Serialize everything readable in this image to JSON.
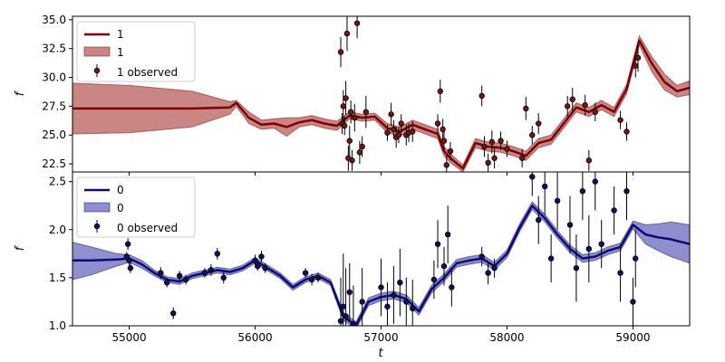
{
  "chart_data": [
    {
      "type": "line",
      "panel": "top",
      "xlabel": "",
      "ylabel": "f",
      "xlim": [
        54550,
        59450
      ],
      "ylim": [
        21.8,
        35.3
      ],
      "yticks": [
        "22.5",
        "25.0",
        "27.5",
        "30.0",
        "32.5",
        "35.0"
      ],
      "yticks_values": [
        22.5,
        25.0,
        27.5,
        30.0,
        32.5,
        35.0
      ],
      "legend_position": "top-left",
      "colors": {
        "line": "#800000",
        "band": "#b85c5c",
        "points": "#7a1414"
      },
      "legend": [
        "1",
        "1",
        "1 observed"
      ],
      "mean": {
        "x": [
          54550,
          55000,
          55500,
          55800,
          55850,
          55950,
          56050,
          56150,
          56250,
          56350,
          56450,
          56550,
          56650,
          56750,
          56850,
          56950,
          57050,
          57150,
          57250,
          57350,
          57450,
          57500,
          57550,
          57650,
          57750,
          57850,
          57950,
          58050,
          58150,
          58250,
          58350,
          58450,
          58550,
          58650,
          58750,
          58850,
          58950,
          59050,
          59150,
          59250,
          59350,
          59450
        ],
        "y": [
          27.3,
          27.3,
          27.3,
          27.4,
          27.8,
          26.5,
          25.9,
          26.0,
          25.7,
          26.1,
          26.3,
          26.0,
          25.8,
          26.7,
          26.5,
          26.6,
          25.6,
          25.3,
          25.9,
          25.5,
          25.1,
          23.6,
          23.0,
          22.1,
          24.3,
          24.0,
          23.9,
          23.6,
          23.2,
          24.3,
          24.6,
          26.0,
          27.4,
          27.0,
          27.6,
          27.0,
          29.0,
          33.2,
          31.2,
          29.6,
          28.8,
          29.1
        ]
      },
      "band": {
        "lower": [
          25.1,
          25.2,
          25.7,
          26.8,
          27.5,
          26.0,
          25.5,
          25.6,
          24.9,
          25.7,
          25.9,
          25.6,
          25.4,
          26.4,
          26.2,
          26.3,
          25.2,
          24.9,
          25.5,
          25.1,
          24.7,
          23.2,
          22.6,
          21.8,
          23.9,
          23.6,
          23.5,
          23.2,
          22.8,
          23.9,
          24.2,
          25.6,
          27.0,
          26.6,
          27.2,
          26.6,
          28.6,
          32.8,
          30.5,
          28.9,
          28.3,
          28.5
        ],
        "upper": [
          29.5,
          29.3,
          28.8,
          27.9,
          28.0,
          27.0,
          26.3,
          26.4,
          26.5,
          26.5,
          26.7,
          26.4,
          26.2,
          27.0,
          26.8,
          26.9,
          26.0,
          25.7,
          26.3,
          25.9,
          25.5,
          24.0,
          23.4,
          22.4,
          24.7,
          24.4,
          24.3,
          24.0,
          23.6,
          24.7,
          25.0,
          26.4,
          27.8,
          27.4,
          28.0,
          27.4,
          29.4,
          33.6,
          31.8,
          30.3,
          29.3,
          29.7
        ]
      },
      "observed": {
        "x": [
          56680,
          56690,
          56700,
          56710,
          56720,
          56730,
          56740,
          56750,
          56760,
          56770,
          56790,
          56810,
          56830,
          56850,
          56880,
          57050,
          57080,
          57100,
          57120,
          57140,
          57160,
          57200,
          57220,
          57250,
          57450,
          57470,
          57490,
          57500,
          57520,
          57550,
          57800,
          57820,
          57850,
          57880,
          57900,
          57950,
          58000,
          58120,
          58150,
          58200,
          58250,
          58480,
          58520,
          58620,
          58650,
          58700,
          58900,
          58950,
          59020,
          59040
        ],
        "y": [
          32.2,
          26.0,
          27.5,
          25.8,
          28.2,
          33.8,
          23.0,
          24.5,
          27.0,
          22.8,
          26.5,
          34.7,
          23.5,
          24.0,
          27.0,
          25.2,
          26.8,
          25.5,
          24.8,
          25.0,
          26.0,
          25.0,
          25.2,
          25.3,
          26.0,
          28.8,
          25.5,
          24.5,
          22.4,
          23.6,
          28.4,
          24.0,
          22.6,
          24.4,
          23.0,
          24.5,
          23.8,
          23.0,
          27.3,
          25.0,
          26.0,
          27.5,
          28.1,
          27.6,
          22.8,
          27.0,
          26.3,
          25.3,
          31.0,
          31.7
        ],
        "yerr": [
          1.3,
          0.9,
          1.4,
          0.8,
          1.5,
          1.5,
          1.1,
          1.3,
          1.0,
          0.9,
          1.2,
          1.3,
          1.0,
          0.9,
          1.4,
          0.7,
          1.0,
          0.8,
          0.9,
          0.7,
          0.8,
          0.9,
          0.8,
          0.9,
          0.8,
          1.0,
          0.9,
          0.9,
          0.9,
          0.8,
          0.9,
          0.9,
          0.8,
          1.0,
          0.9,
          0.8,
          0.7,
          0.8,
          1.0,
          0.8,
          0.9,
          0.9,
          1.0,
          0.9,
          0.9,
          0.8,
          0.8,
          0.8,
          1.0,
          1.2
        ]
      }
    },
    {
      "type": "line",
      "panel": "bottom",
      "xlabel": "t",
      "ylabel": "f",
      "xlim": [
        54550,
        59450
      ],
      "ylim": [
        1.0,
        2.6
      ],
      "xticks": [
        "55000",
        "56000",
        "57000",
        "58000",
        "59000"
      ],
      "xticks_values": [
        55000,
        56000,
        57000,
        58000,
        59000
      ],
      "yticks": [
        "1.0",
        "1.5",
        "2.0",
        "2.5"
      ],
      "yticks_values": [
        1.0,
        1.5,
        2.0,
        2.5
      ],
      "legend_position": "top-left",
      "colors": {
        "line": "#0a0a7a",
        "band": "#6a6abf",
        "points": "#101060"
      },
      "legend": [
        "0",
        "0",
        "0 observed"
      ],
      "mean": {
        "x": [
          54550,
          54700,
          54900,
          55000,
          55100,
          55200,
          55300,
          55400,
          55500,
          55600,
          55700,
          55800,
          55900,
          56000,
          56100,
          56200,
          56300,
          56400,
          56500,
          56600,
          56700,
          56800,
          56900,
          57000,
          57100,
          57200,
          57300,
          57400,
          57500,
          57600,
          57700,
          57800,
          57900,
          58000,
          58100,
          58200,
          58300,
          58400,
          58500,
          58600,
          58700,
          58800,
          58900,
          59000,
          59100,
          59200,
          59300,
          59450
        ],
        "y": [
          1.68,
          1.68,
          1.69,
          1.7,
          1.64,
          1.55,
          1.48,
          1.46,
          1.52,
          1.55,
          1.58,
          1.56,
          1.6,
          1.68,
          1.6,
          1.52,
          1.4,
          1.48,
          1.52,
          1.45,
          1.1,
          1.0,
          1.25,
          1.3,
          1.32,
          1.28,
          1.15,
          1.38,
          1.5,
          1.65,
          1.68,
          1.7,
          1.62,
          1.75,
          2.02,
          2.25,
          2.12,
          1.95,
          1.8,
          1.7,
          1.72,
          1.78,
          1.82,
          2.05,
          1.95,
          1.92,
          1.9,
          1.85
        ]
      },
      "band": {
        "lower": [
          1.48,
          1.53,
          1.62,
          1.66,
          1.6,
          1.52,
          1.45,
          1.43,
          1.49,
          1.52,
          1.55,
          1.53,
          1.57,
          1.65,
          1.57,
          1.49,
          1.37,
          1.45,
          1.49,
          1.42,
          1.06,
          0.96,
          1.21,
          1.26,
          1.28,
          1.24,
          1.11,
          1.34,
          1.46,
          1.61,
          1.64,
          1.66,
          1.58,
          1.71,
          1.98,
          2.21,
          2.08,
          1.91,
          1.76,
          1.66,
          1.68,
          1.74,
          1.78,
          2.01,
          1.85,
          1.78,
          1.72,
          1.65
        ],
        "upper": [
          1.87,
          1.82,
          1.75,
          1.74,
          1.68,
          1.58,
          1.51,
          1.49,
          1.55,
          1.58,
          1.61,
          1.59,
          1.63,
          1.71,
          1.63,
          1.55,
          1.43,
          1.51,
          1.55,
          1.48,
          1.14,
          1.04,
          1.29,
          1.34,
          1.36,
          1.32,
          1.19,
          1.42,
          1.54,
          1.69,
          1.72,
          1.74,
          1.66,
          1.79,
          2.06,
          2.29,
          2.16,
          1.99,
          1.84,
          1.74,
          1.76,
          1.82,
          1.86,
          2.09,
          2.05,
          2.06,
          2.08,
          2.05
        ]
      },
      "observed": {
        "x": [
          54980,
          54990,
          55000,
          55010,
          55250,
          55300,
          55350,
          55400,
          55450,
          55600,
          55650,
          55700,
          55750,
          56000,
          56020,
          56050,
          56080,
          56400,
          56450,
          56500,
          56680,
          56700,
          56720,
          56750,
          56780,
          56850,
          57000,
          57050,
          57100,
          57150,
          57200,
          57250,
          57420,
          57450,
          57500,
          57530,
          57560,
          57800,
          57850,
          57900,
          58200,
          58250,
          58300,
          58350,
          58400,
          58500,
          58550,
          58600,
          58650,
          58700,
          58750,
          58850,
          58900,
          58950,
          59000,
          59020
        ],
        "y": [
          1.72,
          1.85,
          1.68,
          1.6,
          1.55,
          1.45,
          1.13,
          1.52,
          1.48,
          1.55,
          1.58,
          1.75,
          1.5,
          1.68,
          1.62,
          1.72,
          1.6,
          1.55,
          1.48,
          1.5,
          1.05,
          1.2,
          1.1,
          1.35,
          1.02,
          1.25,
          1.4,
          1.2,
          1.32,
          1.45,
          1.25,
          1.18,
          1.48,
          1.85,
          1.62,
          1.95,
          1.4,
          1.72,
          1.55,
          1.6,
          2.55,
          2.1,
          2.45,
          1.7,
          2.3,
          2.05,
          1.6,
          2.4,
          1.8,
          2.5,
          1.85,
          2.2,
          1.55,
          2.4,
          1.25,
          1.7
        ],
        "yerr": [
          0.05,
          0.06,
          0.05,
          0.05,
          0.06,
          0.05,
          0.06,
          0.05,
          0.05,
          0.05,
          0.06,
          0.06,
          0.06,
          0.06,
          0.05,
          0.06,
          0.05,
          0.05,
          0.06,
          0.05,
          0.45,
          0.55,
          0.5,
          0.3,
          0.4,
          0.35,
          0.3,
          0.25,
          0.3,
          0.35,
          0.25,
          0.3,
          0.2,
          0.25,
          0.2,
          0.3,
          0.2,
          0.1,
          0.12,
          0.1,
          0.2,
          0.25,
          0.3,
          0.25,
          0.3,
          0.3,
          0.35,
          0.3,
          0.35,
          0.3,
          0.25,
          0.25,
          0.3,
          0.3,
          0.25,
          0.3
        ]
      }
    }
  ]
}
